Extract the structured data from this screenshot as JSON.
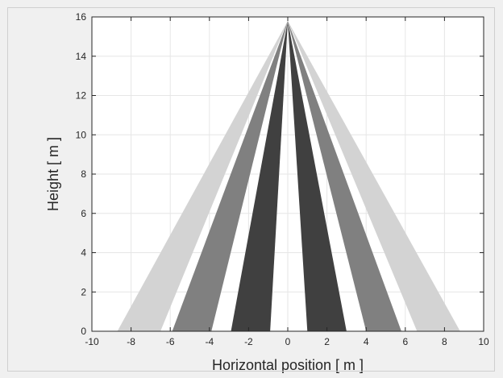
{
  "chart_data": {
    "type": "area",
    "xlabel": "Horizontal position [ m ]",
    "ylabel": "Height [ m ]",
    "xlim": [
      -10,
      10
    ],
    "ylim": [
      0,
      16
    ],
    "x_ticks": [
      -10,
      -8,
      -6,
      -4,
      -2,
      0,
      2,
      4,
      6,
      8,
      10
    ],
    "y_ticks": [
      0,
      2,
      4,
      6,
      8,
      10,
      12,
      14,
      16
    ],
    "grid": true,
    "apex": [
      0,
      15.8
    ],
    "beams": [
      {
        "left": -8.7,
        "right": -6.5,
        "color": "#d3d3d3"
      },
      {
        "left": -5.9,
        "right": -3.9,
        "color": "#808080"
      },
      {
        "left": -2.9,
        "right": -0.9,
        "color": "#404040"
      },
      {
        "left": 1.0,
        "right": 3.0,
        "color": "#404040"
      },
      {
        "left": 4.0,
        "right": 5.8,
        "color": "#808080"
      },
      {
        "left": 6.6,
        "right": 8.8,
        "color": "#d3d3d3"
      }
    ]
  },
  "colors": {
    "figure_background": "#f0f0f0",
    "plot_background": "#ffffff",
    "grid": "#e6e6e6",
    "axis": "#262626"
  }
}
